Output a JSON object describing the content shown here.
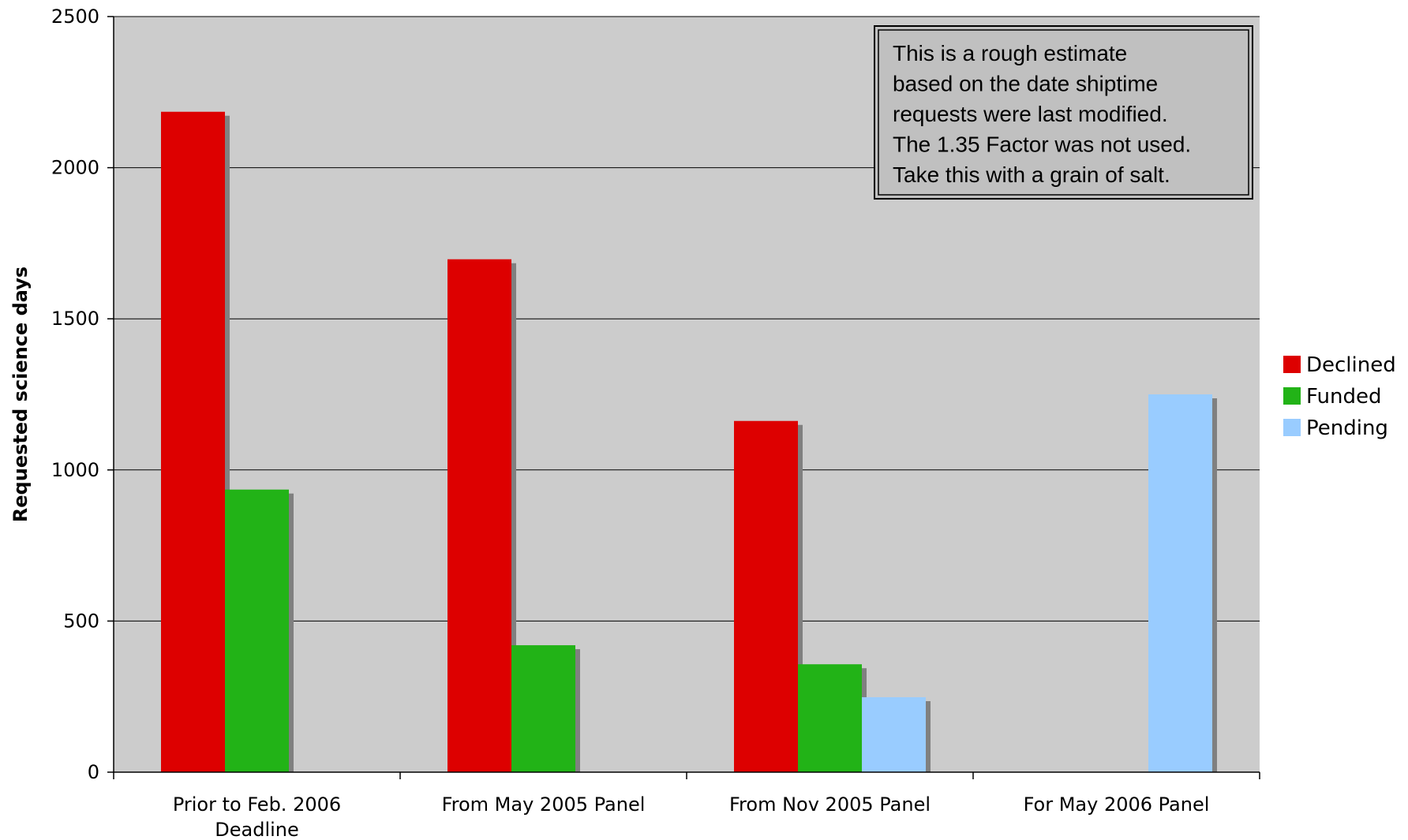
{
  "chart_data": {
    "type": "bar",
    "ylabel": "Requested science days",
    "ylim": [
      0,
      2500
    ],
    "yticks": [
      0,
      500,
      1000,
      1500,
      2000,
      2500
    ],
    "grid": true,
    "legend_position": "right",
    "categories": [
      [
        "Prior to Feb. 2006",
        "Deadline"
      ],
      [
        "From May 2005 Panel"
      ],
      [
        "From Nov 2005 Panel"
      ],
      [
        "For May 2006 Panel"
      ]
    ],
    "series": [
      {
        "name": "Declined",
        "color": "#dd0000",
        "values": [
          2185,
          1697,
          1162,
          null
        ]
      },
      {
        "name": "Funded",
        "color": "#22b317",
        "values": [
          935,
          420,
          357,
          null
        ]
      },
      {
        "name": "Pending",
        "color": "#99ccff",
        "values": [
          null,
          null,
          248,
          1250
        ]
      }
    ],
    "note": [
      "This is a rough estimate",
      "based on the date shiptime",
      "requests were last modified.",
      "The 1.35 Factor was not used.",
      "Take this with a grain of salt."
    ]
  }
}
